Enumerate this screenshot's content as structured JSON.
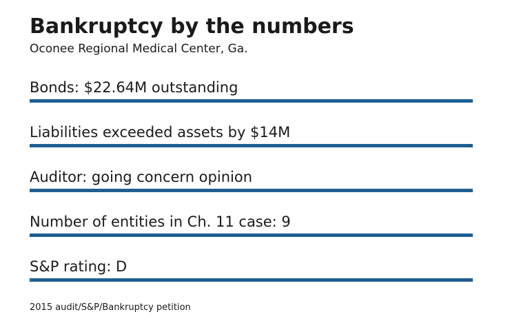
{
  "header": {
    "title": "Bankruptcy by the numbers",
    "subtitle": "Oconee Regional Medical Center, Ga."
  },
  "facts": [
    "Bonds: $22.64M outstanding",
    "Liabilities exceeded assets by $14M",
    "Auditor: going concern opinion",
    "Number of entities in Ch. 11 case: 9",
    "S&P rating: D"
  ],
  "footer": {
    "source": "2015 audit/S&P/Bankruptcy petition"
  },
  "colors": {
    "rule": "#1f5f92",
    "text": "#1a1a1a",
    "background": "#ffffff"
  }
}
